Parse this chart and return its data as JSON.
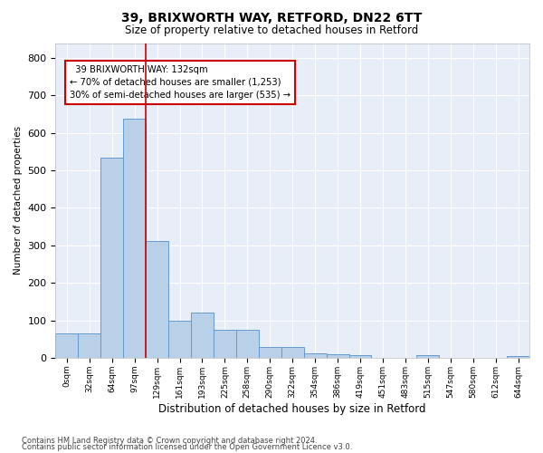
{
  "title1": "39, BRIXWORTH WAY, RETFORD, DN22 6TT",
  "title2": "Size of property relative to detached houses in Retford",
  "xlabel": "Distribution of detached houses by size in Retford",
  "ylabel": "Number of detached properties",
  "bin_labels": [
    "0sqm",
    "32sqm",
    "64sqm",
    "97sqm",
    "129sqm",
    "161sqm",
    "193sqm",
    "225sqm",
    "258sqm",
    "290sqm",
    "322sqm",
    "354sqm",
    "386sqm",
    "419sqm",
    "451sqm",
    "483sqm",
    "515sqm",
    "547sqm",
    "580sqm",
    "612sqm",
    "644sqm"
  ],
  "bar_heights": [
    65,
    65,
    535,
    638,
    312,
    100,
    120,
    75,
    75,
    28,
    28,
    13,
    10,
    8,
    0,
    0,
    8,
    0,
    0,
    0,
    5
  ],
  "bar_color": "#b8d0e8",
  "bar_edgecolor": "#6699cc",
  "bg_color": "#e8eef8",
  "grid_color": "#ffffff",
  "vline_color": "#cc0000",
  "annotation_text": "  39 BRIXWORTH WAY: 132sqm\n← 70% of detached houses are smaller (1,253)\n30% of semi-detached houses are larger (535) →",
  "annotation_box_color": "#cc0000",
  "ylim": [
    0,
    840
  ],
  "yticks": [
    0,
    100,
    200,
    300,
    400,
    500,
    600,
    700,
    800
  ],
  "footer1": "Contains HM Land Registry data © Crown copyright and database right 2024.",
  "footer2": "Contains public sector information licensed under the Open Government Licence v3.0."
}
